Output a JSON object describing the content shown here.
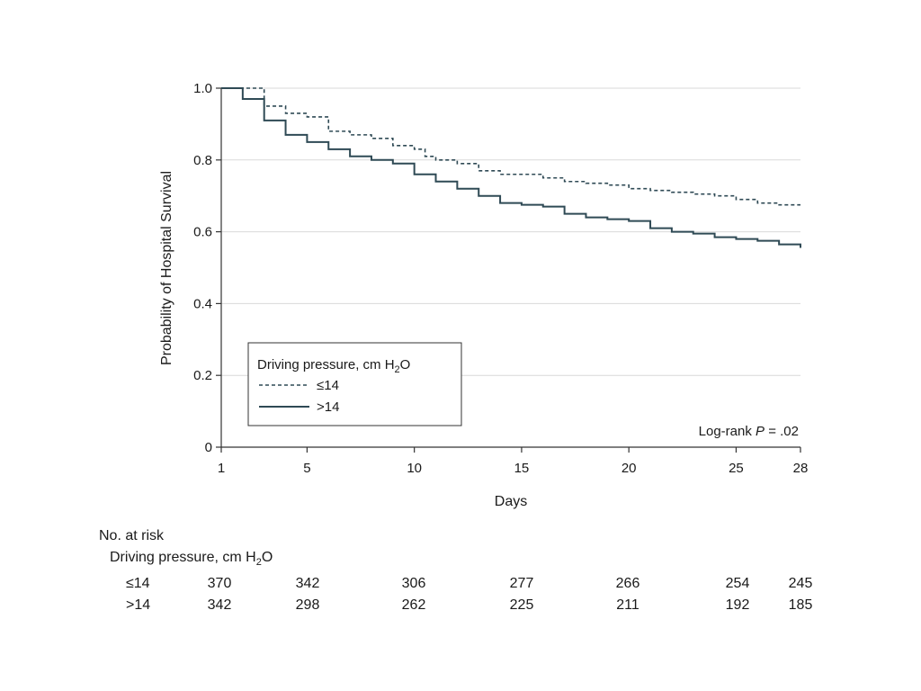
{
  "chart_data": {
    "type": "line",
    "title": "",
    "xlabel": "Days",
    "ylabel": "Probability of Hospital Survival",
    "xlim": [
      1,
      28
    ],
    "ylim": [
      0,
      1.0
    ],
    "x_ticks": [
      1,
      5,
      10,
      15,
      20,
      25,
      28
    ],
    "y_ticks": [
      0,
      0.2,
      0.4,
      0.6,
      0.8,
      1.0
    ],
    "y_tick_labels": [
      "0",
      "0.2",
      "0.4",
      "0.6",
      "0.8",
      "1.0"
    ],
    "grid": "horizontal",
    "legend": {
      "title": "Driving pressure, cm H",
      "title_sub": "2",
      "title_end": "O",
      "placement": "lower-left"
    },
    "annotation": {
      "prefix": "Log-rank ",
      "p": "P",
      "suffix": " = .02"
    },
    "series": [
      {
        "name": "≤14",
        "style": "dashed",
        "color": "#2f4a55",
        "steps": [
          [
            1,
            1.0
          ],
          [
            3,
            0.95
          ],
          [
            4,
            0.93
          ],
          [
            5,
            0.92
          ],
          [
            6,
            0.88
          ],
          [
            7,
            0.87
          ],
          [
            8,
            0.86
          ],
          [
            9,
            0.84
          ],
          [
            10,
            0.83
          ],
          [
            10.5,
            0.81
          ],
          [
            11,
            0.8
          ],
          [
            12,
            0.79
          ],
          [
            13,
            0.77
          ],
          [
            14,
            0.76
          ],
          [
            16,
            0.75
          ],
          [
            17,
            0.74
          ],
          [
            18,
            0.735
          ],
          [
            19,
            0.73
          ],
          [
            20,
            0.72
          ],
          [
            21,
            0.715
          ],
          [
            22,
            0.71
          ],
          [
            23,
            0.705
          ],
          [
            24,
            0.7
          ],
          [
            25,
            0.69
          ],
          [
            26,
            0.68
          ],
          [
            27,
            0.675
          ],
          [
            28,
            0.675
          ]
        ]
      },
      {
        "name": ">14",
        "style": "solid",
        "color": "#2f4a55",
        "steps": [
          [
            1,
            1.0
          ],
          [
            2,
            0.97
          ],
          [
            3,
            0.91
          ],
          [
            4,
            0.87
          ],
          [
            5,
            0.85
          ],
          [
            6,
            0.83
          ],
          [
            7,
            0.81
          ],
          [
            8,
            0.8
          ],
          [
            9,
            0.79
          ],
          [
            10,
            0.76
          ],
          [
            11,
            0.74
          ],
          [
            12,
            0.72
          ],
          [
            13,
            0.7
          ],
          [
            14,
            0.68
          ],
          [
            15,
            0.675
          ],
          [
            16,
            0.67
          ],
          [
            17,
            0.65
          ],
          [
            18,
            0.64
          ],
          [
            19,
            0.635
          ],
          [
            20,
            0.63
          ],
          [
            21,
            0.61
          ],
          [
            22,
            0.6
          ],
          [
            23,
            0.595
          ],
          [
            24,
            0.585
          ],
          [
            25,
            0.58
          ],
          [
            26,
            0.575
          ],
          [
            27,
            0.565
          ],
          [
            28,
            0.555
          ]
        ]
      }
    ],
    "risk_table": {
      "title": "No. at risk",
      "subtitle": "Driving pressure, cm H",
      "subtitle_sub": "2",
      "subtitle_end": "O",
      "x_positions": [
        1,
        5,
        10,
        15,
        20,
        25,
        28
      ],
      "rows": [
        {
          "label": "≤14",
          "values": [
            "370",
            "342",
            "306",
            "277",
            "266",
            "254",
            "245"
          ]
        },
        {
          "label": ">14",
          "values": [
            "342",
            "298",
            "262",
            "225",
            "211",
            "192",
            "185"
          ]
        }
      ]
    }
  }
}
